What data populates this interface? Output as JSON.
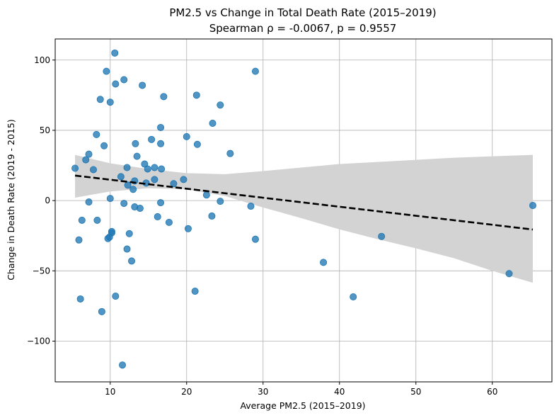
{
  "chart_data": {
    "type": "scatter",
    "title": "PM2.5 vs Change in Total Death Rate (2015–2019)",
    "subtitle": "Spearman ρ = -0.0067, p = 0.9557",
    "xlabel": "Average PM2.5 (2015–2019)",
    "ylabel": "Change in Death Rate (2019 - 2015)",
    "xlim": [
      2.8,
      67.8
    ],
    "ylim": [
      -129,
      115
    ],
    "xticks": [
      10,
      20,
      30,
      40,
      50,
      60
    ],
    "yticks": [
      -100,
      -50,
      0,
      50,
      100
    ],
    "xtick_labels": [
      "10",
      "20",
      "30",
      "40",
      "50",
      "60"
    ],
    "ytick_labels": [
      "−100",
      "−50",
      "0",
      "50",
      "100"
    ],
    "grid": true,
    "colors": {
      "points": "#1f77b4",
      "regression_line": "#000000",
      "confidence_band": "#d3d3d3",
      "grid": "#b0b0b0"
    },
    "regression_line": {
      "x": [
        5.4,
        65.3
      ],
      "y": [
        17.8,
        -20.6
      ],
      "style": "dashed"
    },
    "confidence_band": {
      "x": [
        5.4,
        10,
        15,
        20,
        25,
        30,
        35,
        40,
        45,
        50,
        55,
        60,
        65.3
      ],
      "lower": [
        2.1,
        6.5,
        8.8,
        8.0,
        3.3,
        -4.9,
        -12.5,
        -20.5,
        -27.5,
        -34.0,
        -41.0,
        -50.0,
        -58.5
      ],
      "upper": [
        32.5,
        26.5,
        22.5,
        19.5,
        18.8,
        21.0,
        23.5,
        26.0,
        27.5,
        29.0,
        30.5,
        31.5,
        32.5
      ]
    },
    "points": [
      {
        "x": 5.4,
        "y": 23
      },
      {
        "x": 5.9,
        "y": -28
      },
      {
        "x": 6.1,
        "y": -70
      },
      {
        "x": 6.3,
        "y": -14
      },
      {
        "x": 6.8,
        "y": 29
      },
      {
        "x": 7.2,
        "y": 33
      },
      {
        "x": 7.2,
        "y": -1
      },
      {
        "x": 7.8,
        "y": 22
      },
      {
        "x": 8.2,
        "y": 47
      },
      {
        "x": 8.3,
        "y": -14
      },
      {
        "x": 8.7,
        "y": 72
      },
      {
        "x": 8.9,
        "y": -79
      },
      {
        "x": 9.2,
        "y": 39
      },
      {
        "x": 9.5,
        "y": 92
      },
      {
        "x": 9.7,
        "y": -27
      },
      {
        "x": 9.9,
        "y": -26
      },
      {
        "x": 10.0,
        "y": 70
      },
      {
        "x": 10.0,
        "y": 1.5
      },
      {
        "x": 10.2,
        "y": -22
      },
      {
        "x": 10.2,
        "y": -23
      },
      {
        "x": 10.6,
        "y": 105
      },
      {
        "x": 10.7,
        "y": 83
      },
      {
        "x": 10.7,
        "y": -68
      },
      {
        "x": 11.4,
        "y": 17
      },
      {
        "x": 11.6,
        "y": -117
      },
      {
        "x": 11.8,
        "y": 86
      },
      {
        "x": 11.8,
        "y": -2
      },
      {
        "x": 12.2,
        "y": 23.5
      },
      {
        "x": 12.2,
        "y": -34.5
      },
      {
        "x": 12.3,
        "y": 11
      },
      {
        "x": 12.5,
        "y": -23.5
      },
      {
        "x": 12.8,
        "y": -43
      },
      {
        "x": 13.0,
        "y": 8
      },
      {
        "x": 13.2,
        "y": 14
      },
      {
        "x": 13.2,
        "y": -4.5
      },
      {
        "x": 13.3,
        "y": 40.5
      },
      {
        "x": 13.5,
        "y": 31.5
      },
      {
        "x": 13.9,
        "y": -5.5
      },
      {
        "x": 14.2,
        "y": 82
      },
      {
        "x": 14.5,
        "y": 26
      },
      {
        "x": 14.7,
        "y": 12.5
      },
      {
        "x": 14.9,
        "y": 22.5
      },
      {
        "x": 15.4,
        "y": 43.5
      },
      {
        "x": 15.8,
        "y": 23.5
      },
      {
        "x": 15.8,
        "y": 15
      },
      {
        "x": 16.2,
        "y": -11.5
      },
      {
        "x": 16.6,
        "y": 52
      },
      {
        "x": 16.6,
        "y": 40.5
      },
      {
        "x": 16.6,
        "y": -1.5
      },
      {
        "x": 16.7,
        "y": 22.5
      },
      {
        "x": 17.0,
        "y": 74
      },
      {
        "x": 17.7,
        "y": -15.5
      },
      {
        "x": 18.3,
        "y": 12
      },
      {
        "x": 19.6,
        "y": 15
      },
      {
        "x": 20.0,
        "y": 45.5
      },
      {
        "x": 20.2,
        "y": -20
      },
      {
        "x": 21.1,
        "y": -64.5
      },
      {
        "x": 21.3,
        "y": 75
      },
      {
        "x": 21.4,
        "y": 40
      },
      {
        "x": 22.6,
        "y": 4
      },
      {
        "x": 23.3,
        "y": -11
      },
      {
        "x": 23.4,
        "y": 55
      },
      {
        "x": 24.4,
        "y": 68
      },
      {
        "x": 24.4,
        "y": -0.5
      },
      {
        "x": 25.7,
        "y": 33.5
      },
      {
        "x": 28.4,
        "y": -4
      },
      {
        "x": 29.0,
        "y": 92
      },
      {
        "x": 29.0,
        "y": -27.5
      },
      {
        "x": 37.9,
        "y": -44
      },
      {
        "x": 41.8,
        "y": -68.5
      },
      {
        "x": 45.5,
        "y": -25.5
      },
      {
        "x": 62.2,
        "y": -52
      },
      {
        "x": 65.3,
        "y": -3.5
      }
    ]
  }
}
